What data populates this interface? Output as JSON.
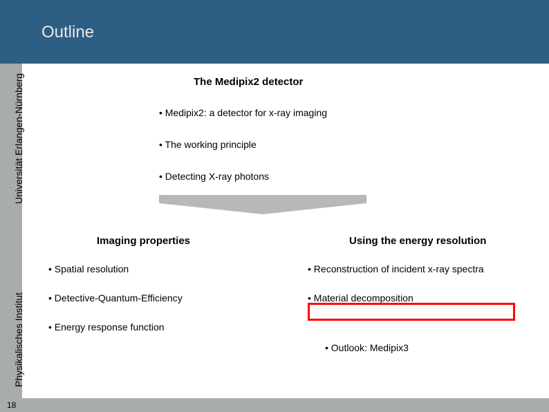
{
  "header": {
    "title": "Outline"
  },
  "sidebar": {
    "label1": "Universität Erlangen-Nürnberg",
    "label2": "Physikalisches Institut"
  },
  "page_number": "18",
  "section_top": {
    "heading": "The Medipix2 detector",
    "bullets": [
      "Medipix2: a detector for x-ray imaging",
      "The working principle",
      "Detecting X-ray photons"
    ]
  },
  "col_left": {
    "heading": "Imaging properties",
    "bullets": [
      "Spatial resolution",
      "Detective-Quantum-Efficiency",
      "Energy response function"
    ]
  },
  "col_right": {
    "heading": "Using the energy resolution",
    "bullets": [
      "Reconstruction of incident x-ray spectra",
      "Material decomposition"
    ],
    "outlook": "Outlook: Medipix3"
  },
  "colors": {
    "header_bg": "#2d5f84",
    "sidebar_bg": "#a8acac",
    "highlight_border": "#ff0000",
    "arrow_fill": "#b8b8b8"
  }
}
